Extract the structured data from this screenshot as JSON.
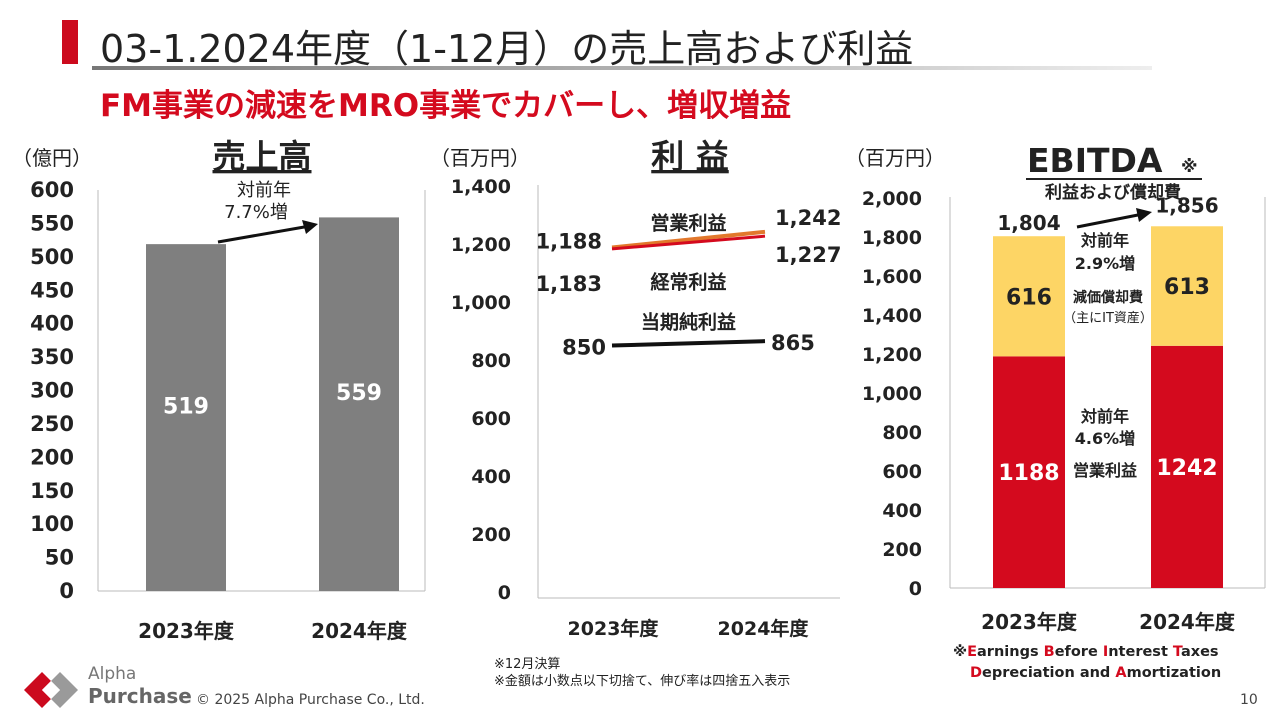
{
  "header": {
    "title": "03-1.2024年度（1-12月）の売上高および利益",
    "subtitle": "FM事業の減速をMRO事業でカバーし、増収増益"
  },
  "colors": {
    "accent": "#cc0a1e",
    "bar_gray": "#7f7f7f",
    "bar_red": "#d40a1e",
    "bar_yellow": "#fdd565",
    "line_orange": "#e2782c"
  },
  "chart_data": [
    {
      "type": "bar",
      "title": "売上高",
      "unit_label": "（億円）",
      "categories": [
        "2023年度",
        "2024年度"
      ],
      "series": [
        {
          "values": [
            519,
            559
          ]
        }
      ],
      "ylim": [
        0,
        600
      ],
      "yticks": [
        "0",
        "50",
        "100",
        "150",
        "200",
        "250",
        "300",
        "350",
        "400",
        "450",
        "500",
        "550",
        "600"
      ],
      "annotation": {
        "line1": "対前年",
        "line2": "7.7%増"
      },
      "grid": false
    },
    {
      "type": "line",
      "title": "利 益",
      "unit_label": "（百万円）",
      "categories": [
        "2023年度",
        "2024年度"
      ],
      "series": [
        {
          "name": "営業利益",
          "values": [
            1188,
            1242
          ],
          "labels": [
            "1,188",
            "1,242"
          ]
        },
        {
          "name": "経常利益",
          "values": [
            1183,
            1227
          ],
          "labels": [
            "1,183",
            "1,227"
          ]
        },
        {
          "name": "当期純利益",
          "values": [
            850,
            865
          ],
          "labels": [
            "850",
            "865"
          ]
        }
      ],
      "ylim": [
        0,
        1400
      ],
      "yticks": [
        "0",
        "200",
        "400",
        "600",
        "800",
        "1,000",
        "1,200",
        "1,400"
      ],
      "grid": false
    },
    {
      "type": "bar",
      "stacked": true,
      "title": "EBITDA",
      "title_mark": "※",
      "subtitle": "利益および償却費",
      "unit_label": "（百万円）",
      "categories": [
        "2023年度",
        "2024年度"
      ],
      "series": [
        {
          "name": "営業利益",
          "values": [
            1188,
            1242
          ],
          "labels": [
            "1188",
            "1242"
          ]
        },
        {
          "name": "減価償却費",
          "values": [
            616,
            613
          ],
          "labels": [
            "616",
            "613"
          ]
        }
      ],
      "totals": [
        "1,804",
        "1,856"
      ],
      "ylim": [
        0,
        2000
      ],
      "yticks": [
        "0",
        "200",
        "400",
        "600",
        "800",
        "1,000",
        "1,200",
        "1,400",
        "1,600",
        "1,800",
        "2,000"
      ],
      "annotations": {
        "total_growth": {
          "line1": "対前年",
          "line2": "2.9%増"
        },
        "depreciation": {
          "line1": "減価償却費",
          "line2": "（主にIT資産）"
        },
        "op_growth": {
          "line1": "対前年",
          "line2": "4.6%増",
          "line3": "営業利益"
        }
      },
      "grid": false
    }
  ],
  "footer": {
    "logo_line1": "Alpha",
    "logo_line2": "Purchase",
    "copyright": "© 2025 Alpha Purchase Co., Ltd.",
    "note1": "※12月決算",
    "note2": "※金額は小数点以下切捨て、伸び率は四捨五入表示",
    "page_number": "10",
    "ebitda_note": {
      "prefix": "※",
      "line1": [
        {
          "cap": "E",
          "rest": "arnings "
        },
        {
          "cap": "B",
          "rest": "efore "
        },
        {
          "cap": "I",
          "rest": "nterest "
        },
        {
          "cap": "T",
          "rest": "axes"
        }
      ],
      "line2": [
        {
          "cap": "D",
          "rest": "epreciation and "
        },
        {
          "cap": "A",
          "rest": "mortization"
        }
      ]
    }
  }
}
